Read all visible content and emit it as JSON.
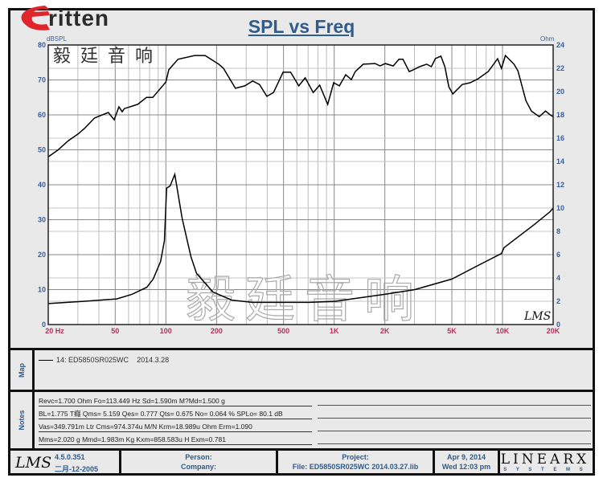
{
  "logo": {
    "word": "Eritten",
    "chinese": "毅廷音响",
    "brand_color": "#e0242c"
  },
  "watermark": "毅廷音响",
  "chart_data": {
    "type": "line",
    "title": "SPL vs Freq",
    "ylabel_left": "dBSPL",
    "ylabel_right": "Ohm",
    "x_scale": "log",
    "xlim": [
      20,
      20000
    ],
    "ylim_left": [
      0,
      80
    ],
    "ylim_right": [
      0,
      24
    ],
    "grid": true,
    "x_ticks": [
      {
        "v": 20,
        "label": "20 Hz"
      },
      {
        "v": 50,
        "label": "50"
      },
      {
        "v": 100,
        "label": "100"
      },
      {
        "v": 200,
        "label": "200"
      },
      {
        "v": 500,
        "label": "500"
      },
      {
        "v": 1000,
        "label": "1K"
      },
      {
        "v": 2000,
        "label": "2K"
      },
      {
        "v": 5000,
        "label": "5K"
      },
      {
        "v": 10000,
        "label": "10K"
      },
      {
        "v": 20000,
        "label": "20K"
      }
    ],
    "y_left_ticks": [
      0,
      10,
      20,
      30,
      40,
      50,
      60,
      70,
      80
    ],
    "y_right_ticks": [
      0,
      2,
      4,
      6,
      8,
      10,
      12,
      14,
      16,
      18,
      20,
      22,
      24
    ],
    "series": [
      {
        "axis": "left",
        "x": [
          20,
          22.8,
          26.3,
          30,
          32.8,
          37.7,
          45.5,
          49.3,
          52.6,
          55,
          56.6,
          68,
          76.7,
          83.6,
          100,
          104,
          118,
          148,
          171,
          206,
          220,
          259,
          294,
          328,
          360,
          398,
          436,
          497,
          551,
          616,
          673,
          751,
          820,
          915,
          993,
          1073,
          1171,
          1264,
          1335,
          1489,
          1753,
          1871,
          2015,
          2243,
          2425,
          2563,
          2793,
          2950,
          3217,
          3546,
          3780,
          3990,
          4305,
          4545,
          4800,
          5066,
          5763,
          6418,
          7147,
          8220,
          8858,
          9350,
          9860,
          10410,
          11710,
          12360,
          13770,
          14840,
          16540,
          18020,
          19230,
          20000
        ],
        "y": [
          48,
          49.9,
          52.6,
          54.5,
          56.1,
          59.1,
          60.7,
          58.6,
          62.3,
          60.9,
          61.8,
          63,
          65,
          65,
          69.4,
          72.9,
          75.9,
          77,
          77,
          74.5,
          73.3,
          67.6,
          68.3,
          69.7,
          68.7,
          65.3,
          66.4,
          72.2,
          72.2,
          68.3,
          70.6,
          66.4,
          68.5,
          63,
          69.2,
          68.3,
          71.5,
          70.1,
          72.4,
          74.5,
          74.7,
          74,
          74.7,
          74,
          75.9,
          75.9,
          72.4,
          72.9,
          73.8,
          74.5,
          73.8,
          76.1,
          76.8,
          73.8,
          68,
          66,
          68.7,
          69.2,
          70.3,
          72.4,
          74.5,
          76.1,
          73.3,
          77,
          74.5,
          72.6,
          64.1,
          61.1,
          59.5,
          61.1,
          60,
          59.5
        ]
      },
      {
        "axis": "right",
        "x": [
          20,
          33,
          51,
          63,
          77,
          84,
          93,
          98,
          101,
          106,
          113,
          125,
          141,
          152,
          190,
          246,
          328,
          715,
          1015,
          2015,
          3012,
          5000,
          7000,
          9860,
          10210,
          15500,
          19200,
          20000
        ],
        "y": [
          1.8,
          2.0,
          2.2,
          2.6,
          3.2,
          3.9,
          5.4,
          7.2,
          11.7,
          11.9,
          12.9,
          9.1,
          5.8,
          4.4,
          2.8,
          2.1,
          1.9,
          1.9,
          2.0,
          2.6,
          3.0,
          3.9,
          5.0,
          6.1,
          6.6,
          8.6,
          9.7,
          10.0
        ]
      }
    ],
    "signature": "LMS"
  },
  "map": {
    "label": "Map",
    "legend": "14: ED5850SR025WC",
    "legend_date": "2014.3.28"
  },
  "notes": {
    "label": "Notes",
    "lines": [
      "Revc=1.700 Ohm  Fo=113.449 Hz  Sd=1.590m M?Md=1.500 g",
      "BL=1.775 T癮  Qms= 5.159  Qes= 0.777  Qts= 0.675  No= 0.064 %  SPLo= 80.1 dB",
      "Vas=349.791m Ltr  Cms=974.374u M/N  Krm=18.989u Ohm  Erm=1.090",
      "Mms=2.020 g  Mmd=1.983m Kg  Kxm=858.583u H  Exm=0.781"
    ]
  },
  "footer": {
    "lms_logo": "LMS",
    "version": "4.5.0.351",
    "build_date": "二月-12-2005",
    "person": "Person:",
    "company": "Company:",
    "project": "Project:",
    "file": "File: ED5850SR025WC  2014.03.27.lib",
    "date": "Apr  9, 2014",
    "time": "Wed 12:03 pm",
    "linearx": "LINEARX",
    "linearx_sub": "S Y S T E M S"
  },
  "colors": {
    "axis_left": "#3a5f9f",
    "axis_x": "#b0305f",
    "title": "#2f5c8a"
  }
}
